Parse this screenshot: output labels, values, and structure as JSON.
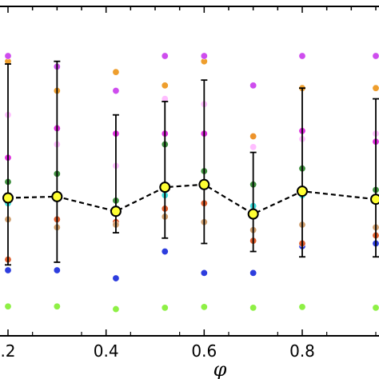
{
  "chart_data": {
    "type": "scatter",
    "title": "",
    "xlabel": "φ",
    "ylabel": "",
    "xlim": [
      0.15,
      0.98
    ],
    "ylim": [
      0.0,
      1.0
    ],
    "x_ticks": [
      {
        "value": 0.2,
        "label": ".2"
      },
      {
        "value": 0.4,
        "label": "0.4"
      },
      {
        "value": 0.6,
        "label": "0.6"
      },
      {
        "value": 0.8,
        "label": "0.8"
      }
    ],
    "grid": false,
    "colors": {
      "mean_fill": "#ffff33",
      "mean_edge": "#000000",
      "errorbar": "#000000",
      "mean_line": "#000000"
    },
    "series": [
      {
        "color": "#88f03c",
        "x": [
          0.2,
          0.3,
          0.42,
          0.52,
          0.6,
          0.7,
          0.8,
          0.95
        ],
        "y": [
          0.065,
          0.065,
          0.055,
          0.06,
          0.063,
          0.06,
          0.063,
          0.06
        ]
      },
      {
        "color": "#2233dd",
        "x": [
          0.2,
          0.3,
          0.42,
          0.52,
          0.6,
          0.7,
          0.8,
          0.95
        ],
        "y": [
          0.2,
          0.2,
          0.17,
          0.27,
          0.19,
          0.19,
          0.29,
          0.3
        ]
      },
      {
        "color": "#dd5522",
        "x": [
          0.2,
          0.3,
          0.42,
          0.52,
          0.6,
          0.7,
          0.8,
          0.95
        ],
        "y": [
          0.24,
          0.39,
          0.38,
          0.43,
          0.45,
          0.31,
          0.3,
          0.33
        ]
      },
      {
        "color": "#cc9966",
        "x": [
          0.2,
          0.3,
          0.42,
          0.52,
          0.6,
          0.7,
          0.8,
          0.95
        ],
        "y": [
          0.39,
          0.36,
          0.37,
          0.4,
          0.38,
          0.35,
          0.37,
          0.36
        ]
      },
      {
        "color": "#33dddd",
        "x": [
          0.2,
          0.3,
          0.42,
          0.52,
          0.6,
          0.7,
          0.8,
          0.95
        ],
        "y": [
          0.45,
          0.48,
          0.43,
          0.48,
          0.53,
          0.44,
          0.48,
          0.47
        ]
      },
      {
        "color": "#338833",
        "x": [
          0.2,
          0.3,
          0.42,
          0.52,
          0.6,
          0.7,
          0.8,
          0.95
        ],
        "y": [
          0.53,
          0.56,
          0.46,
          0.67,
          0.57,
          0.52,
          0.58,
          0.5
        ]
      },
      {
        "color": "#dd22dd",
        "x": [
          0.2,
          0.3,
          0.42,
          0.52,
          0.6,
          0.7,
          0.8,
          0.95
        ],
        "y": [
          0.62,
          0.73,
          0.71,
          0.71,
          0.71,
          0.7,
          0.72,
          0.68
        ]
      },
      {
        "color": "#ffbbff",
        "x": [
          0.2,
          0.3,
          0.42,
          0.52,
          0.6,
          0.7,
          0.8,
          0.95
        ],
        "y": [
          0.78,
          0.67,
          0.59,
          0.84,
          0.82,
          0.66,
          0.69,
          0.71
        ]
      },
      {
        "color": "#ee9922",
        "x": [
          0.2,
          0.3,
          0.42,
          0.52,
          0.6,
          0.7,
          0.8,
          0.95
        ],
        "y": [
          0.98,
          0.87,
          0.94,
          0.89,
          0.98,
          0.7,
          0.88,
          0.88
        ]
      },
      {
        "color": "#cc44ee",
        "x": [
          0.2,
          0.3,
          0.42,
          0.52,
          0.6,
          0.7,
          0.8,
          0.95
        ],
        "y": [
          1.0,
          0.96,
          0.87,
          1.0,
          1.0,
          0.89,
          1.0,
          1.0
        ]
      }
    ],
    "mean_series": {
      "x": [
        0.2,
        0.3,
        0.42,
        0.52,
        0.6,
        0.7,
        0.8,
        0.95
      ],
      "y": [
        0.47,
        0.475,
        0.42,
        0.51,
        0.52,
        0.41,
        0.495,
        0.465
      ],
      "err_low": [
        0.22,
        0.23,
        0.34,
        0.32,
        0.3,
        0.27,
        0.25,
        0.25
      ],
      "err_high": [
        0.97,
        0.98,
        0.78,
        0.83,
        0.91,
        0.64,
        0.88,
        0.84
      ]
    }
  }
}
